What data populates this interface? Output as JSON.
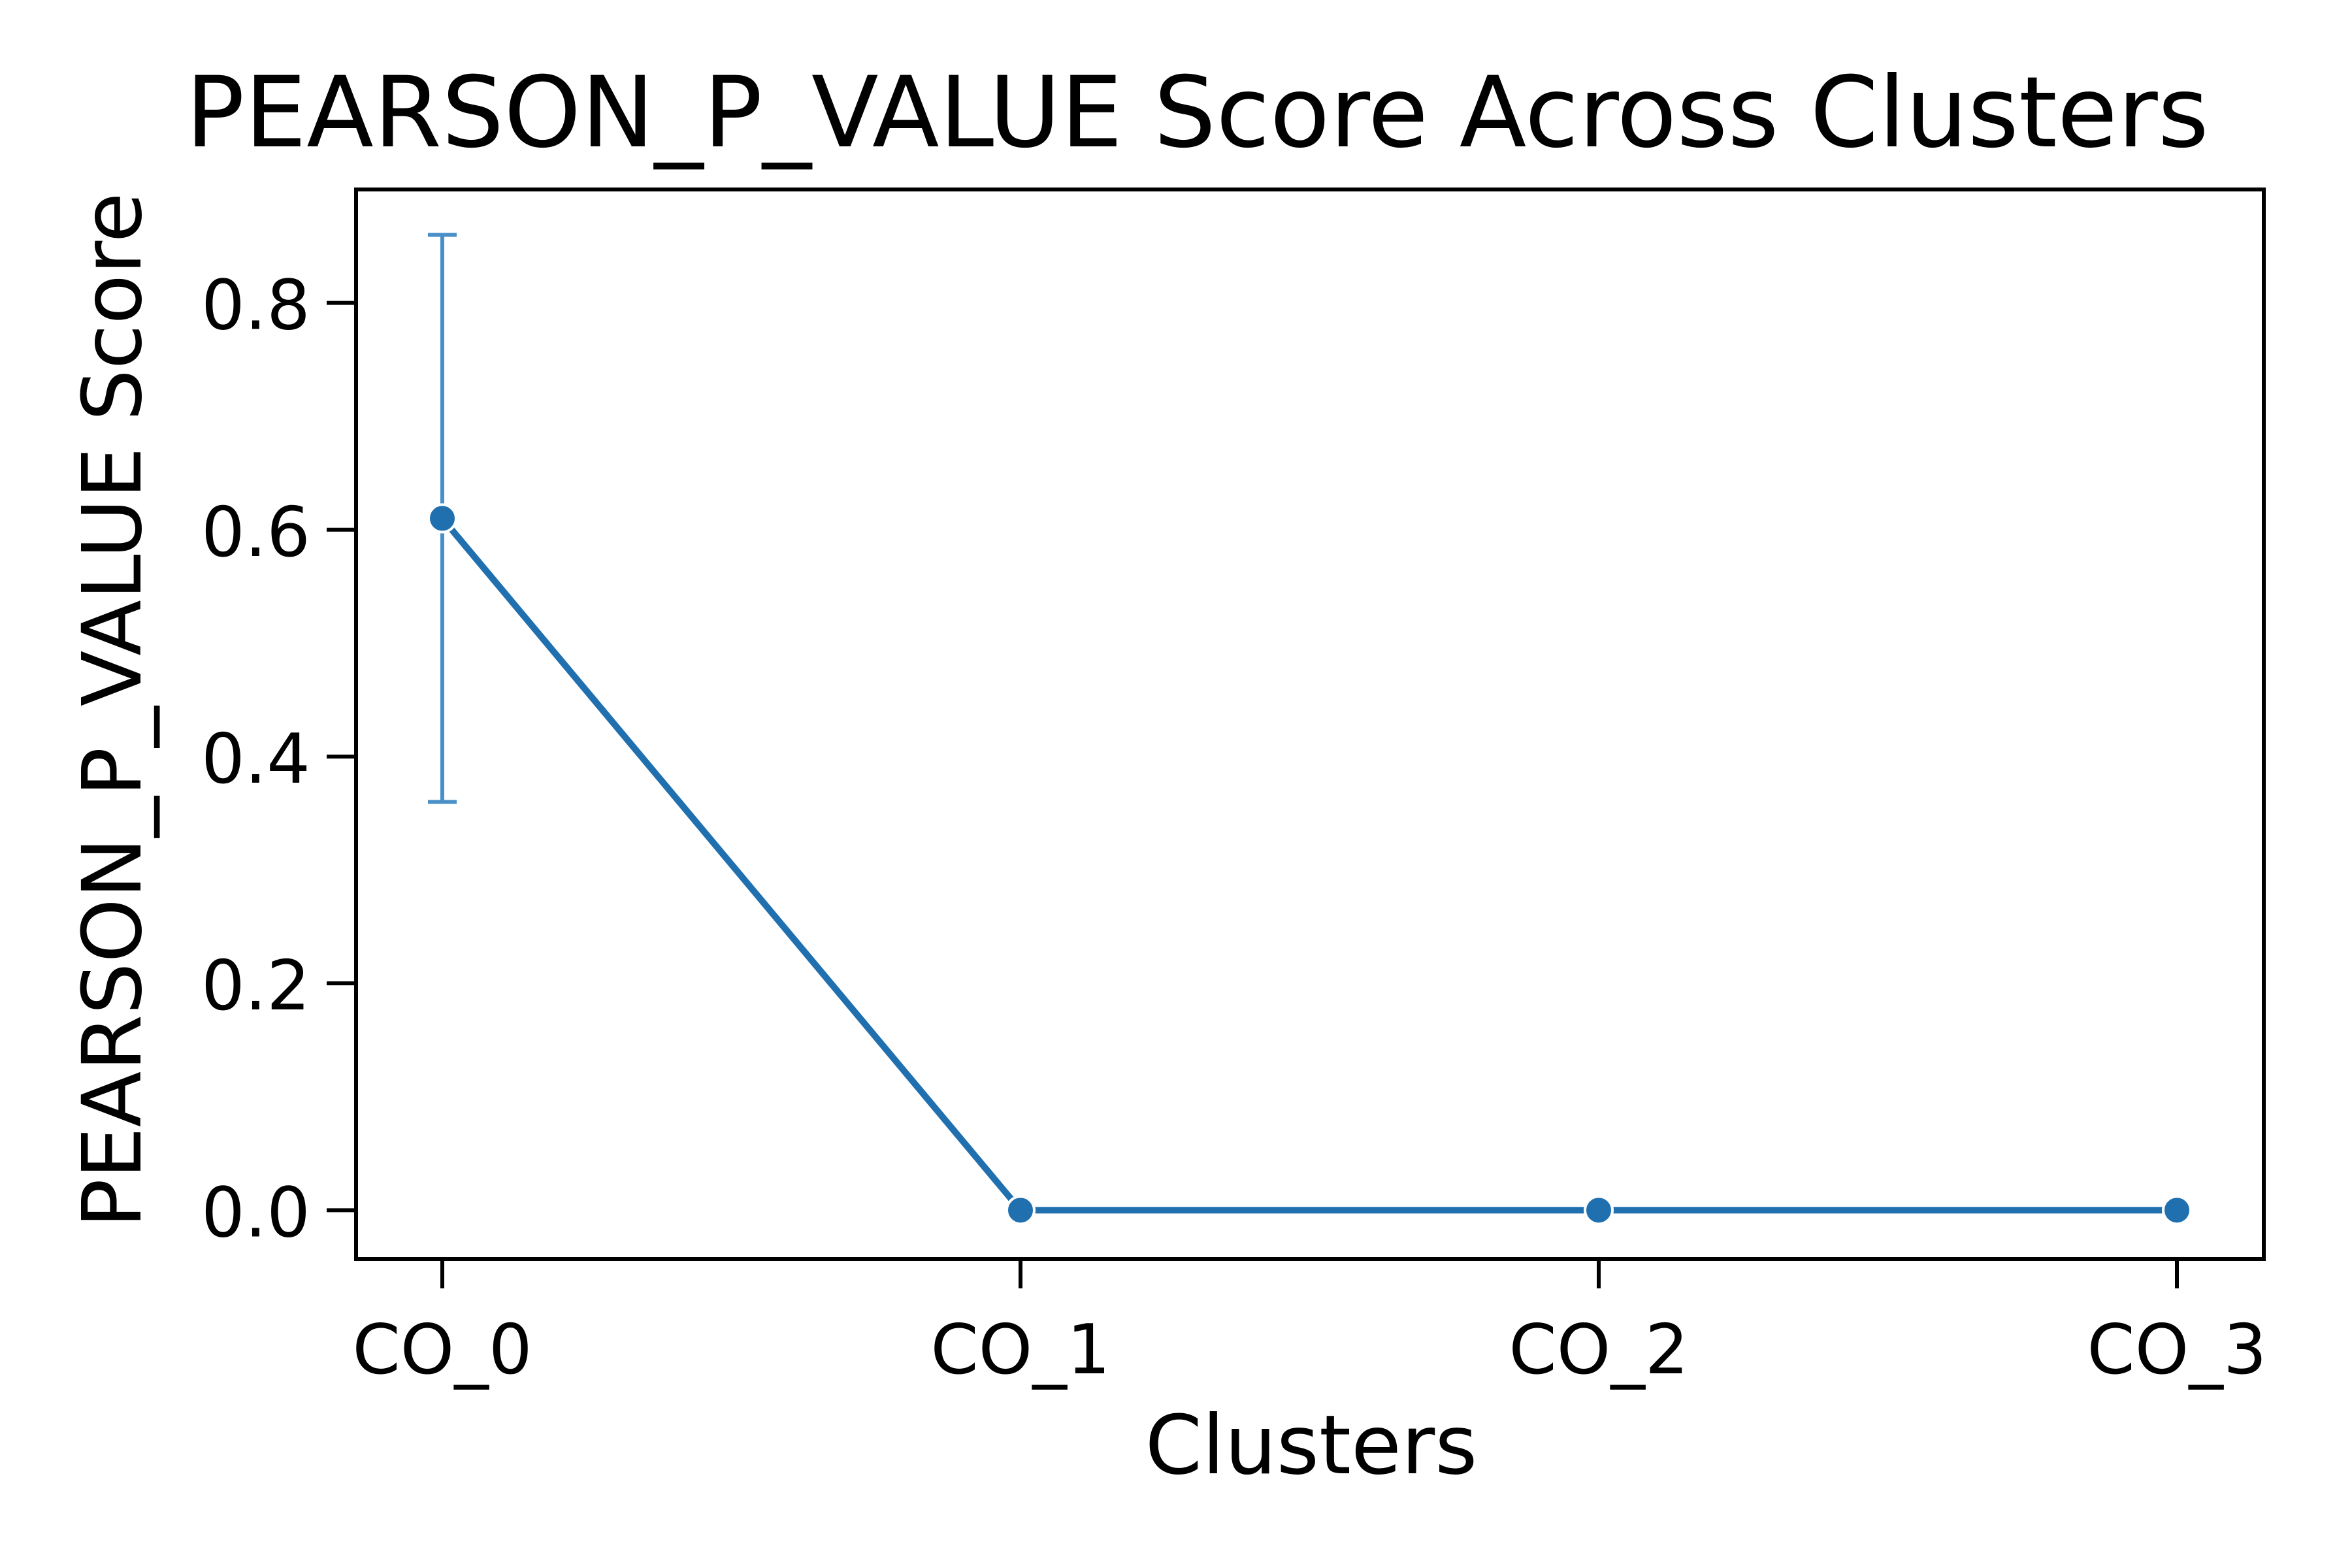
{
  "chart_data": {
    "type": "line",
    "title": "PEARSON_P_VALUE Score Across Clusters",
    "xlabel": "Clusters",
    "ylabel": "PEARSON_P_VALUE Score",
    "categories": [
      "CO_0",
      "CO_1",
      "CO_2",
      "CO_3"
    ],
    "series": [
      {
        "values": [
          0.61,
          0.0,
          0.0,
          0.0
        ],
        "error_low": [
          0.36,
          0.0,
          0.0,
          0.0
        ],
        "error_high": [
          0.86,
          0.0,
          0.0,
          0.0
        ]
      }
    ],
    "ylim": [
      -0.043,
      0.9
    ],
    "yticks": [
      0.0,
      0.2,
      0.4,
      0.6,
      0.8
    ],
    "ytick_labels": [
      "0.0",
      "0.2",
      "0.4",
      "0.6",
      "0.8"
    ],
    "grid": false,
    "legend": "none",
    "colors": {
      "line": "#2070b0",
      "errorbar": "#4a90c8",
      "axes": "#000000"
    }
  }
}
